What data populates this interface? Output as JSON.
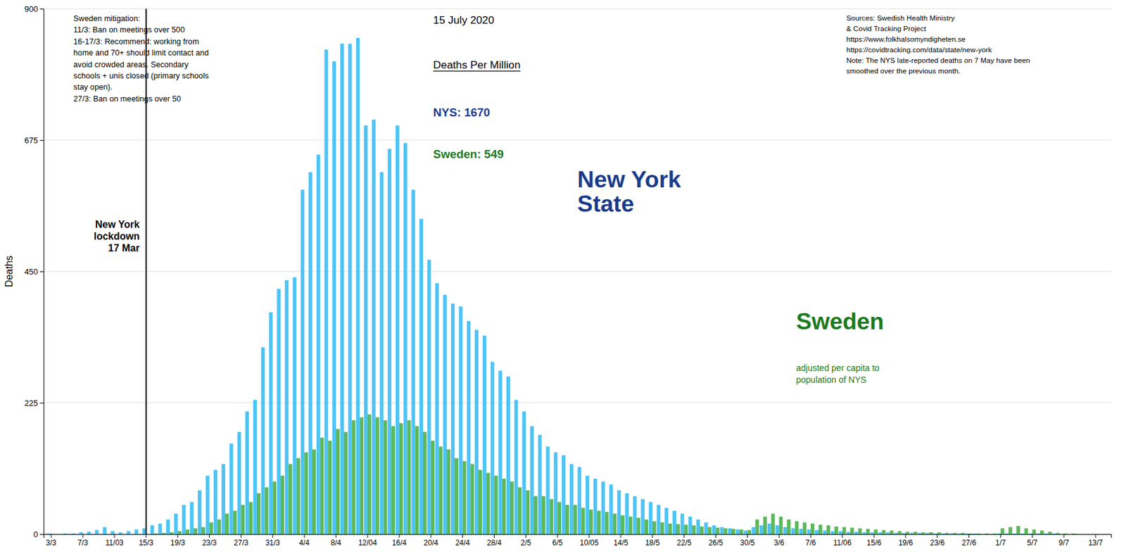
{
  "chart_data": {
    "type": "bar",
    "ylabel": "Deaths",
    "ylim": [
      0,
      900
    ],
    "yticks": [
      0,
      225,
      450,
      675,
      900
    ],
    "grid": true,
    "categories": [
      "3/3",
      null,
      null,
      null,
      "7/3",
      null,
      null,
      null,
      "11/03",
      null,
      null,
      null,
      "15/3",
      null,
      null,
      null,
      "19/3",
      null,
      null,
      null,
      "23/3",
      null,
      null,
      null,
      "27/3",
      null,
      null,
      null,
      "31/3",
      null,
      null,
      null,
      "4/4",
      null,
      null,
      null,
      "8/4",
      null,
      null,
      null,
      "12/04",
      null,
      null,
      null,
      "16/4",
      null,
      null,
      null,
      "20/4",
      null,
      null,
      null,
      "24/4",
      null,
      null,
      null,
      "28/4",
      null,
      null,
      null,
      "2/5",
      null,
      null,
      null,
      "6/5",
      null,
      null,
      null,
      "10/05",
      null,
      null,
      null,
      "14/5",
      null,
      null,
      null,
      "18/5",
      null,
      null,
      null,
      "22/5",
      null,
      null,
      null,
      "26/5",
      null,
      null,
      null,
      "30/5",
      null,
      null,
      null,
      "3/6",
      null,
      null,
      null,
      "7/6",
      null,
      null,
      null,
      "11/06",
      null,
      null,
      null,
      "15/6",
      null,
      null,
      null,
      "19/6",
      null,
      null,
      null,
      "23/6",
      null,
      null,
      null,
      "27/6",
      null,
      null,
      null,
      "1/7",
      null,
      null,
      null,
      "5/7",
      null,
      null,
      null,
      "9/7",
      null,
      null,
      null,
      "13/7",
      null
    ],
    "series": [
      {
        "color": "#4DC4F5",
        "values": [
          1,
          0,
          1,
          1,
          3,
          4,
          7,
          12,
          5,
          3,
          5,
          8,
          10,
          15,
          18,
          25,
          35,
          50,
          55,
          75,
          100,
          110,
          120,
          155,
          175,
          210,
          230,
          320,
          380,
          420,
          435,
          440,
          590,
          620,
          650,
          830,
          810,
          840,
          840,
          850,
          700,
          710,
          620,
          660,
          700,
          670,
          590,
          540,
          470,
          430,
          410,
          395,
          390,
          365,
          350,
          340,
          295,
          280,
          270,
          230,
          210,
          185,
          170,
          150,
          140,
          135,
          120,
          115,
          100,
          95,
          90,
          85,
          75,
          70,
          65,
          60,
          55,
          50,
          45,
          40,
          35,
          30,
          25,
          20,
          15,
          12,
          10,
          8,
          6,
          12,
          15,
          18,
          15,
          12,
          10,
          9,
          8,
          7,
          6,
          5,
          5,
          4,
          4,
          3,
          3,
          3,
          3,
          2,
          2,
          2,
          2,
          2,
          1,
          1,
          1,
          1,
          1,
          1,
          0,
          0,
          1,
          1,
          1,
          1,
          1,
          1,
          1,
          1,
          0,
          0,
          0,
          0,
          0,
          0
        ]
      },
      {
        "color": "#5CB85C",
        "values": [
          0,
          0,
          0,
          0,
          0,
          0,
          0,
          0,
          0,
          0,
          0,
          0,
          0,
          1,
          2,
          3,
          5,
          8,
          10,
          12,
          20,
          25,
          35,
          40,
          50,
          55,
          70,
          80,
          90,
          100,
          120,
          130,
          140,
          145,
          165,
          160,
          180,
          175,
          195,
          200,
          205,
          200,
          195,
          185,
          190,
          195,
          185,
          175,
          160,
          150,
          145,
          130,
          125,
          120,
          110,
          105,
          100,
          95,
          90,
          80,
          75,
          65,
          65,
          60,
          55,
          50,
          50,
          45,
          42,
          40,
          38,
          35,
          32,
          30,
          28,
          25,
          22,
          20,
          18,
          17,
          16,
          15,
          13,
          12,
          11,
          10,
          9,
          8,
          7,
          25,
          30,
          35,
          30,
          25,
          22,
          20,
          18,
          16,
          15,
          13,
          12,
          11,
          10,
          9,
          8,
          7,
          6,
          5,
          4,
          4,
          3,
          3,
          3,
          2,
          2,
          2,
          1,
          1,
          1,
          1,
          10,
          12,
          14,
          10,
          8,
          6,
          4,
          2,
          1,
          1,
          0,
          0,
          0,
          0
        ]
      }
    ],
    "annotations": [
      {
        "text": "Sweden mitigation:\n11/3: Ban on meetings over 500\n16-17/3: Recommend: working from\nhome and 70+ should limit contact and\navoid crowded areas. Secondary\nschools + unis closed (primary schools\nstay open).\n27/3: Ban on meetings over 50"
      },
      {
        "text": "15 July 2020"
      },
      {
        "text": "Deaths Per Million"
      },
      {
        "text": "NYS: 1670",
        "color": "#1A3C8A"
      },
      {
        "text": "Sweden: 549",
        "color": "#1A7A20"
      },
      {
        "text": "Sources: Swedish Health Ministry\n& Covid Tracking Project\nhttps://www.folkhalsomyndigheten.se\nhttps://covidtracking.com/data/state/new-york\nNote: The NYS late-reported deaths on 7 May have been\nsmoothed over the previous month."
      },
      {
        "text": "New York\nState",
        "color": "#1A3C8A"
      },
      {
        "text": "Sweden",
        "color": "#1A7A20"
      },
      {
        "text": "adjusted per capita to\npopulation of NYS",
        "color": "#1A7A20"
      },
      {
        "text": "New York\nlockdown\n17 Mar",
        "x": 12
      }
    ]
  }
}
